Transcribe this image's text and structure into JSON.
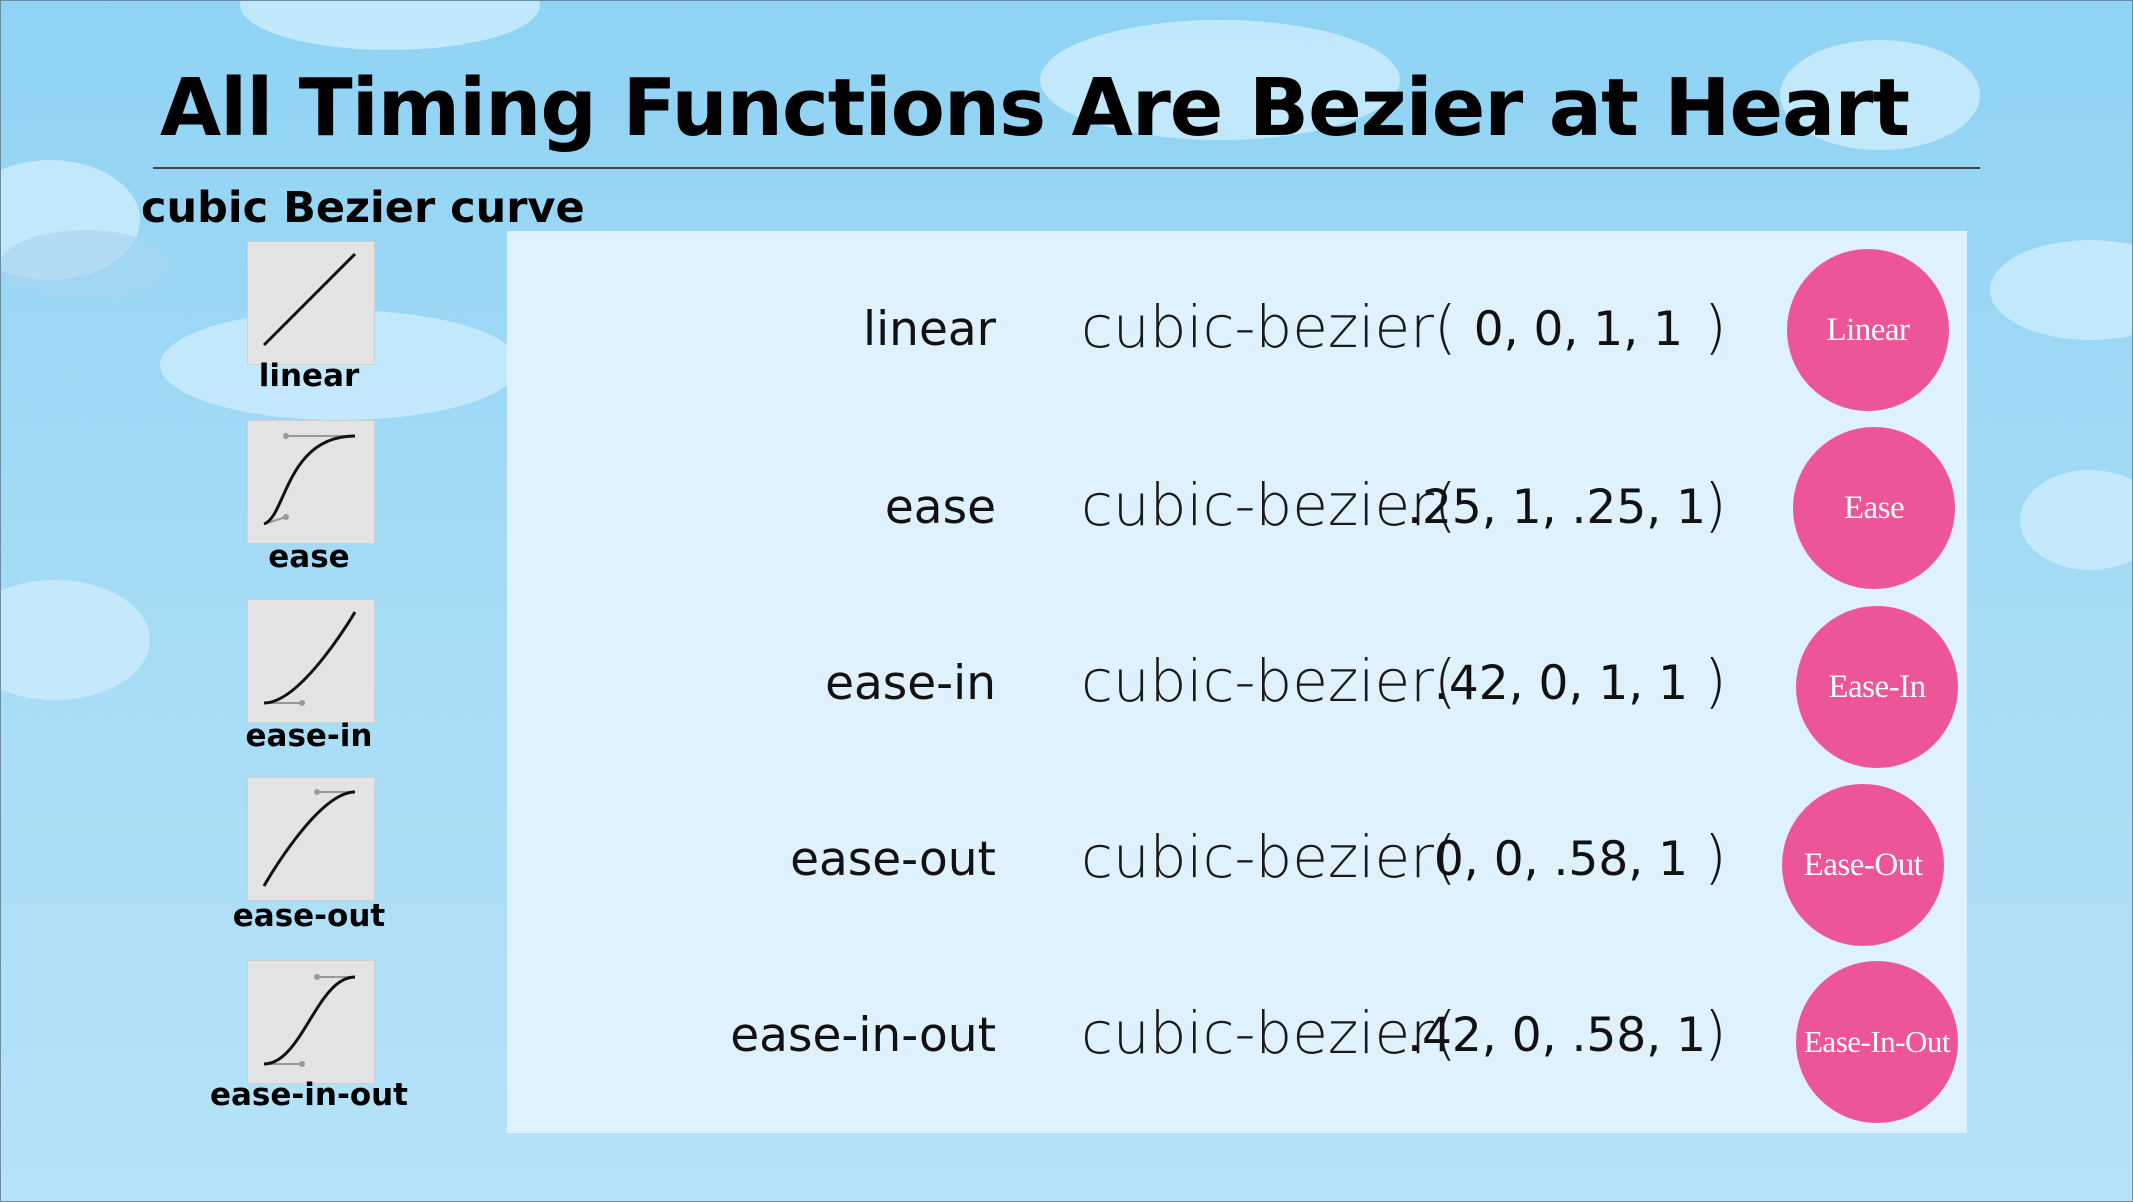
{
  "slide": {
    "title": "All Timing Functions Are Bezier at Heart",
    "subtitle": "cubic Bezier curve"
  },
  "colors": {
    "ball": "#ec5597",
    "panel": "#def1fd",
    "sky": "#8fd3f4"
  },
  "thumbnails": [
    {
      "label": "linear",
      "icon": "linear-curve-icon"
    },
    {
      "label": "ease",
      "icon": "ease-curve-icon"
    },
    {
      "label": "ease-in",
      "icon": "ease-in-curve-icon"
    },
    {
      "label": "ease-out",
      "icon": "ease-out-curve-icon"
    },
    {
      "label": "ease-in-out",
      "icon": "ease-in-out-curve-icon"
    }
  ],
  "rows": [
    {
      "name": "linear",
      "func": "cubic-bezier(",
      "args": "0, 0, 1, 1",
      "close": ")",
      "ball": "Linear"
    },
    {
      "name": "ease",
      "func": "cubic-bezier(",
      "args": ".25, 1, .25, 1",
      "close": ")",
      "ball": "Ease"
    },
    {
      "name": "ease-in",
      "func": "cubic-bezier(",
      "args": ".42, 0, 1, 1",
      "close": ")",
      "ball": "Ease-In"
    },
    {
      "name": "ease-out",
      "func": "cubic-bezier(",
      "args": "0, 0, .58, 1",
      "close": ")",
      "ball": "Ease-Out"
    },
    {
      "name": "ease-in-out",
      "func": "cubic-bezier(",
      "args": ".42, 0, .58, 1",
      "close": ")",
      "ball": "Ease-In-Out"
    }
  ]
}
